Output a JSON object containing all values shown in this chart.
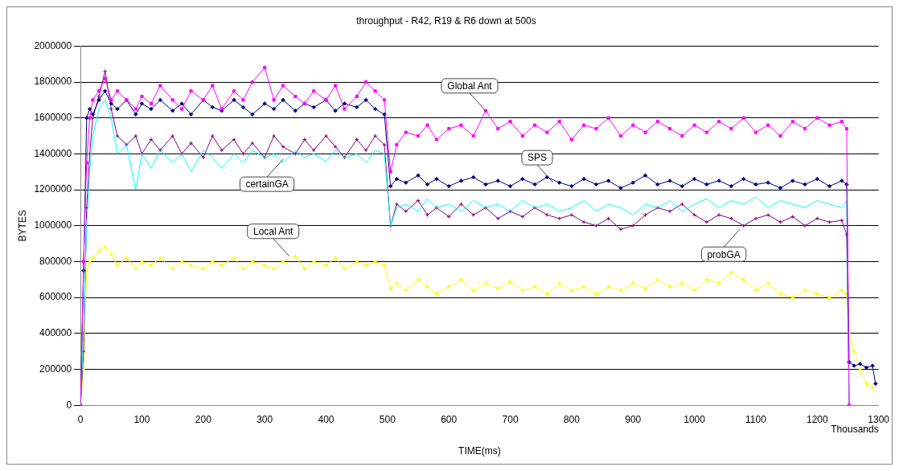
{
  "chart_data": {
    "type": "line",
    "title": "throughput - R42, R19 & R6 down at 500s",
    "xlabel": "TIME(ms)",
    "ylabel": "BYTES",
    "x": [
      0,
      5,
      10,
      15,
      20,
      30,
      40,
      50,
      60,
      75,
      90,
      100,
      115,
      130,
      150,
      165,
      180,
      200,
      215,
      230,
      250,
      265,
      280,
      300,
      315,
      330,
      350,
      365,
      380,
      400,
      415,
      430,
      450,
      465,
      480,
      495,
      505,
      515,
      530,
      550,
      565,
      580,
      600,
      620,
      640,
      660,
      680,
      700,
      720,
      740,
      760,
      780,
      800,
      820,
      840,
      860,
      880,
      900,
      920,
      940,
      960,
      980,
      1000,
      1020,
      1040,
      1060,
      1080,
      1100,
      1120,
      1140,
      1160,
      1180,
      1200,
      1220,
      1240,
      1248,
      1252,
      1260,
      1270,
      1280,
      1290,
      1295
    ],
    "xlim": [
      0,
      1300
    ],
    "xticks": [
      0,
      100,
      200,
      300,
      400,
      500,
      600,
      700,
      800,
      900,
      1000,
      1100,
      1200,
      1300
    ],
    "ylim": [
      0,
      2000000
    ],
    "yticks": [
      0,
      200000,
      400000,
      600000,
      800000,
      1000000,
      1200000,
      1400000,
      1600000,
      1800000,
      2000000
    ],
    "grid": "y",
    "legend": false,
    "line_style": "solid",
    "series": [
      {
        "color": "#ff00ff",
        "marker": "square",
        "values": [
          0,
          800000,
          1350000,
          1600000,
          1700000,
          1750000,
          1820000,
          1700000,
          1750000,
          1700000,
          1650000,
          1720000,
          1680000,
          1780000,
          1700000,
          1650000,
          1750000,
          1700000,
          1780000,
          1650000,
          1750000,
          1700000,
          1800000,
          1880000,
          1700000,
          1780000,
          1720000,
          1680000,
          1750000,
          1700000,
          1780000,
          1650000,
          1720000,
          1800000,
          1750000,
          1700000,
          1300000,
          1450000,
          1520000,
          1500000,
          1560000,
          1480000,
          1540000,
          1560000,
          1500000,
          1640000,
          1540000,
          1580000,
          1500000,
          1560000,
          1520000,
          1580000,
          1480000,
          1560000,
          1540000,
          1600000,
          1500000,
          1560000,
          1520000,
          1580000,
          1540000,
          1500000,
          1560000,
          1520000,
          1580000,
          1540000,
          1600000,
          1520000,
          1560000,
          1500000,
          1580000,
          1540000,
          1600000,
          1560000,
          1580000,
          1540000,
          0,
          null,
          null,
          null,
          null,
          null
        ]
      },
      {
        "color": "#000080",
        "marker": "diamond",
        "values": [
          0,
          750000,
          1600000,
          1650000,
          1620000,
          1700000,
          1750000,
          1680000,
          1650000,
          1700000,
          1620000,
          1680000,
          1650000,
          1700000,
          1640000,
          1680000,
          1620000,
          1700000,
          1660000,
          1640000,
          1700000,
          1660000,
          1620000,
          1680000,
          1650000,
          1700000,
          1640000,
          1680000,
          1660000,
          1700000,
          1640000,
          1680000,
          1660000,
          1700000,
          1650000,
          1620000,
          1220000,
          1260000,
          1240000,
          1280000,
          1230000,
          1260000,
          1220000,
          1250000,
          1270000,
          1230000,
          1250000,
          1220000,
          1260000,
          1230000,
          1270000,
          1240000,
          1220000,
          1260000,
          1230000,
          1250000,
          1210000,
          1240000,
          1280000,
          1230000,
          1250000,
          1220000,
          1260000,
          1230000,
          1250000,
          1220000,
          1260000,
          1230000,
          1240000,
          1210000,
          1250000,
          1230000,
          1260000,
          1220000,
          1250000,
          1230000,
          240000,
          220000,
          230000,
          210000,
          220000,
          120000
        ]
      },
      {
        "color": "#00ffff",
        "marker": "none",
        "values": [
          0,
          400000,
          1000000,
          1300000,
          1500000,
          1650000,
          1700000,
          1600000,
          1400000,
          1450000,
          1200000,
          1400000,
          1320000,
          1420000,
          1350000,
          1400000,
          1300000,
          1420000,
          1380000,
          1320000,
          1400000,
          1350000,
          1420000,
          1380000,
          1400000,
          1350000,
          1420000,
          1380000,
          1400000,
          1360000,
          1420000,
          1380000,
          1400000,
          1350000,
          1420000,
          1400000,
          1000000,
          1100000,
          1120000,
          1080000,
          1150000,
          1100000,
          1120000,
          1080000,
          1140000,
          1100000,
          1120000,
          1080000,
          1140000,
          1100000,
          1120000,
          1080000,
          1100000,
          1140000,
          1080000,
          1120000,
          1100000,
          1060000,
          1120000,
          1100000,
          1140000,
          1080000,
          1120000,
          1150000,
          1100000,
          1140000,
          1120000,
          1160000,
          1100000,
          1140000,
          1120000,
          1100000,
          1140000,
          1120000,
          1100000,
          1140000,
          0,
          null,
          null,
          null,
          null,
          null
        ]
      },
      {
        "color": "#800080",
        "marker": "cross",
        "values": [
          0,
          300000,
          1100000,
          1400000,
          1600000,
          1720000,
          1860000,
          1650000,
          1500000,
          1450000,
          1500000,
          1400000,
          1480000,
          1420000,
          1500000,
          1400000,
          1460000,
          1380000,
          1500000,
          1420000,
          1480000,
          1400000,
          1460000,
          1380000,
          1500000,
          1440000,
          1400000,
          1480000,
          1420000,
          1500000,
          1440000,
          1380000,
          1480000,
          1420000,
          1500000,
          1450000,
          1000000,
          1120000,
          1080000,
          1140000,
          1060000,
          1100000,
          1050000,
          1120000,
          1060000,
          1100000,
          1040000,
          1080000,
          1050000,
          1100000,
          1060000,
          1040000,
          1060000,
          1020000,
          1000000,
          1040000,
          980000,
          1000000,
          1060000,
          1100000,
          1080000,
          1120000,
          1060000,
          1020000,
          1060000,
          1040000,
          1000000,
          1040000,
          1060000,
          1020000,
          1050000,
          1000000,
          1040000,
          1020000,
          1030000,
          950000,
          0,
          null,
          null,
          null,
          null,
          null
        ]
      },
      {
        "color": "#ffff00",
        "marker": "triangle",
        "values": [
          0,
          200000,
          750000,
          800000,
          820000,
          860000,
          880000,
          840000,
          780000,
          820000,
          760000,
          800000,
          780000,
          820000,
          760000,
          800000,
          780000,
          760000,
          800000,
          780000,
          820000,
          760000,
          800000,
          780000,
          760000,
          800000,
          830000,
          760000,
          800000,
          780000,
          820000,
          760000,
          800000,
          780000,
          800000,
          780000,
          650000,
          680000,
          640000,
          700000,
          660000,
          620000,
          660000,
          700000,
          640000,
          680000,
          650000,
          690000,
          640000,
          660000,
          620000,
          680000,
          640000,
          660000,
          620000,
          660000,
          640000,
          680000,
          650000,
          700000,
          660000,
          680000,
          640000,
          700000,
          680000,
          740000,
          700000,
          640000,
          680000,
          620000,
          600000,
          640000,
          620000,
          600000,
          640000,
          620000,
          400000,
          300000,
          200000,
          120000,
          100000,
          null
        ]
      }
    ],
    "annotations": [
      {
        "text": "Global Ant",
        "x": 660,
        "y": 1640000
      },
      {
        "text": "SPS",
        "x": 770,
        "y": 1240000
      },
      {
        "text": "certainGA",
        "x": 330,
        "y": 1370000
      },
      {
        "text": "Local Ant",
        "x": 340,
        "y": 830000
      },
      {
        "text": "probGA",
        "x": 1074,
        "y": 980000
      },
      "Thousands"
    ]
  }
}
